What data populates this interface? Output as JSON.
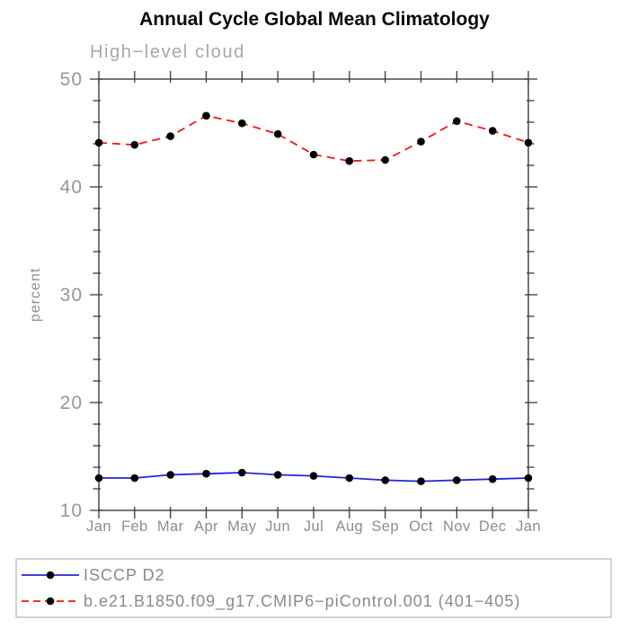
{
  "chart_data": {
    "type": "line",
    "title": "Annual Cycle Global Mean Climatology",
    "subtitle": "High−level cloud",
    "xlabel": "",
    "ylabel": "percent",
    "ylim": [
      10,
      50
    ],
    "yticks_major": [
      10,
      20,
      30,
      40,
      50
    ],
    "ytick_minor_step": 2,
    "grid": false,
    "legend_position": "bottom-left-box",
    "categories": [
      "Jan",
      "Feb",
      "Mar",
      "Apr",
      "May",
      "Jun",
      "Jul",
      "Aug",
      "Sep",
      "Oct",
      "Nov",
      "Dec",
      "Jan"
    ],
    "series": [
      {
        "name": "ISCCP D2",
        "color": "#2424dd",
        "line_style": "solid",
        "marker": "filled-circle",
        "marker_color": "#000000",
        "values": [
          13.0,
          13.0,
          13.3,
          13.4,
          13.5,
          13.3,
          13.2,
          13.0,
          12.8,
          12.7,
          12.8,
          12.9,
          13.0
        ]
      },
      {
        "name": "b.e21.B1850.f09_g17.CMIP6−piControl.001 (401−405)",
        "color": "#f81410",
        "line_style": "dashed",
        "marker": "filled-circle",
        "marker_color": "#000000",
        "values": [
          44.1,
          43.9,
          44.7,
          46.6,
          45.9,
          44.9,
          43.0,
          42.4,
          42.5,
          44.2,
          46.1,
          45.2,
          44.1
        ]
      }
    ]
  },
  "style": {
    "frame_color": "#3c3c3c",
    "tick_label_color": "#979797",
    "subtitle_color": "#a8a8a8",
    "legend_border_color": "#b3b3b3",
    "legend_text_color": "#8a8a8a",
    "title_color": "#0a0a0a",
    "background_color": "#ffffff"
  }
}
